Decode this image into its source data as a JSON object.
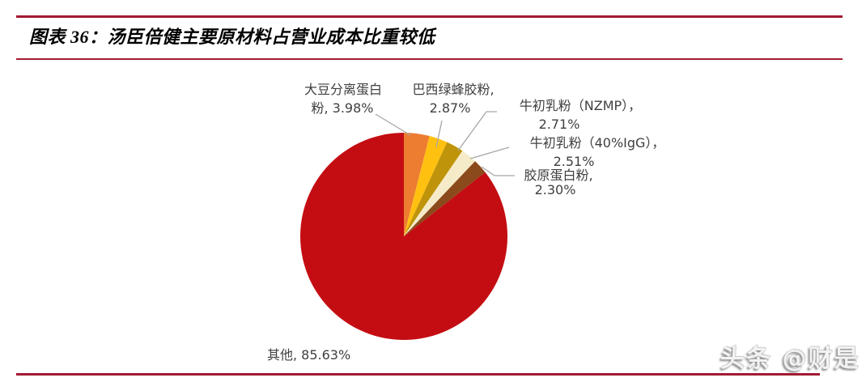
{
  "header": {
    "figure_label": "图表 36",
    "title": "图表 36：汤臣倍健主要原材料占营业成本比重较低"
  },
  "chart_data": {
    "type": "pie",
    "title": "汤臣倍健主要原材料占营业成本比重较低",
    "unit": "%",
    "start_angle_deg": 0,
    "direction": "clockwise",
    "legend_position": "data-callout-labels",
    "slices": [
      {
        "name": "大豆分离蛋白粉",
        "value": 3.98
      },
      {
        "name": "巴西绿蜂胶粉",
        "value": 2.87
      },
      {
        "name": "牛初乳粉（NZMP）",
        "value": 2.71
      },
      {
        "name": "牛初乳粉（40%IgG）",
        "value": 2.51
      },
      {
        "name": "胶原蛋白粉",
        "value": 2.3
      },
      {
        "name": "其他",
        "value": 85.63
      }
    ],
    "colors": [
      "#ED7D31",
      "#FFC010",
      "#BF940A",
      "#F5EBC8",
      "#8B4A1B",
      "#C40D12"
    ]
  },
  "labels": {
    "soy": {
      "line1": "大豆分离蛋白",
      "line2": "粉, 3.98%"
    },
    "propolis": {
      "line1": "巴西绿蜂胶粉,",
      "line2": "2.87%"
    },
    "nzmp": {
      "line1": "牛初乳粉（NZMP），",
      "line2": "2.71%"
    },
    "igg": {
      "line1": "牛初乳粉（40%IgG），",
      "line2": "2.51%"
    },
    "collagen": {
      "line1": "胶原蛋白粉,",
      "line2": "2.30%"
    },
    "other": {
      "text": "其他, 85.63%"
    }
  },
  "watermark": {
    "text": "头条 @财是"
  },
  "colors": {
    "accent_rule": "#A21B31",
    "label_text": "#3F3F3F",
    "leader_line": "#A6A6A6",
    "title_text": "#000000"
  }
}
